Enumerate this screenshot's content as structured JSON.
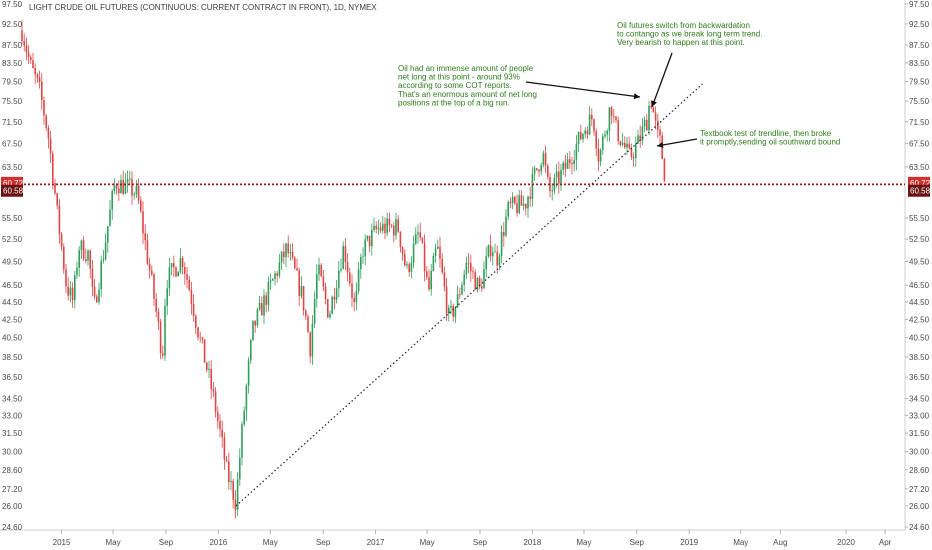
{
  "chart_data": {
    "type": "candlestick",
    "title": "LIGHT CRUDE OIL FUTURES (CONTINUOUS: CURRENT CONTRACT IN FRONT), 1D, NYMEX",
    "y_ticks": [
      "24.60",
      "26.00",
      "27.20",
      "28.60",
      "30.00",
      "31.50",
      "33.00",
      "34.50",
      "36.50",
      "38.50",
      "40.50",
      "42.50",
      "44.50",
      "46.50",
      "49.50",
      "52.50",
      "55.50",
      "60.58",
      "63.50",
      "67.50",
      "71.50",
      "75.50",
      "79.50",
      "83.50",
      "87.50",
      "92.50",
      "97.50"
    ],
    "x_ticks": [
      "2015",
      "May",
      "Sep",
      "2016",
      "May",
      "Sep",
      "2017",
      "May",
      "Sep",
      "2018",
      "May",
      "Sep",
      "2019",
      "May",
      "Aug",
      "2020",
      "Apr"
    ],
    "x_range": [
      "2014-10",
      "2020-05"
    ],
    "scale": "log",
    "series_key": [
      {
        "date": "2014-10-01",
        "close": 91.0
      },
      {
        "date": "2014-10-20",
        "close": 83.0
      },
      {
        "date": "2014-11-10",
        "close": 78.0
      },
      {
        "date": "2014-12-01",
        "close": 69.0
      },
      {
        "date": "2014-12-22",
        "close": 56.0
      },
      {
        "date": "2015-01-12",
        "close": 46.5
      },
      {
        "date": "2015-01-28",
        "close": 44.5
      },
      {
        "date": "2015-02-10",
        "close": 51.5
      },
      {
        "date": "2015-03-05",
        "close": 50.5
      },
      {
        "date": "2015-03-17",
        "close": 43.5
      },
      {
        "date": "2015-04-10",
        "close": 51.0
      },
      {
        "date": "2015-05-06",
        "close": 61.0
      },
      {
        "date": "2015-06-10",
        "close": 60.0
      },
      {
        "date": "2015-06-26",
        "close": 59.0
      },
      {
        "date": "2015-07-20",
        "close": 50.0
      },
      {
        "date": "2015-08-24",
        "close": 38.5
      },
      {
        "date": "2015-09-01",
        "close": 47.0
      },
      {
        "date": "2015-10-09",
        "close": 50.0
      },
      {
        "date": "2015-11-18",
        "close": 40.5
      },
      {
        "date": "2015-12-21",
        "close": 34.5
      },
      {
        "date": "2016-01-20",
        "close": 28.5
      },
      {
        "date": "2016-02-11",
        "close": 26.2
      },
      {
        "date": "2016-03-22",
        "close": 41.5
      },
      {
        "date": "2016-04-29",
        "close": 46.0
      },
      {
        "date": "2016-06-08",
        "close": 51.2
      },
      {
        "date": "2016-07-15",
        "close": 45.0
      },
      {
        "date": "2016-08-02",
        "close": 39.5
      },
      {
        "date": "2016-08-19",
        "close": 48.5
      },
      {
        "date": "2016-09-15",
        "close": 43.0
      },
      {
        "date": "2016-10-19",
        "close": 51.5
      },
      {
        "date": "2016-11-14",
        "close": 43.5
      },
      {
        "date": "2016-12-01",
        "close": 51.0
      },
      {
        "date": "2017-01-06",
        "close": 54.0
      },
      {
        "date": "2017-02-22",
        "close": 54.2
      },
      {
        "date": "2017-03-14",
        "close": 48.0
      },
      {
        "date": "2017-04-12",
        "close": 53.5
      },
      {
        "date": "2017-05-04",
        "close": 45.5
      },
      {
        "date": "2017-05-24",
        "close": 51.5
      },
      {
        "date": "2017-06-21",
        "close": 42.5
      },
      {
        "date": "2017-07-10",
        "close": 44.5
      },
      {
        "date": "2017-08-01",
        "close": 49.5
      },
      {
        "date": "2017-08-31",
        "close": 45.9
      },
      {
        "date": "2017-09-28",
        "close": 52.0
      },
      {
        "date": "2017-10-09",
        "close": 49.5
      },
      {
        "date": "2017-11-07",
        "close": 57.0
      },
      {
        "date": "2017-12-15",
        "close": 57.5
      },
      {
        "date": "2018-01-25",
        "close": 66.0
      },
      {
        "date": "2018-02-09",
        "close": 59.2
      },
      {
        "date": "2018-03-20",
        "close": 63.5
      },
      {
        "date": "2018-05-08",
        "close": 71.0
      },
      {
        "date": "2018-05-22",
        "close": 72.5
      },
      {
        "date": "2018-06-05",
        "close": 64.8
      },
      {
        "date": "2018-07-03",
        "close": 75.0
      },
      {
        "date": "2018-07-12",
        "close": 70.5
      },
      {
        "date": "2018-08-15",
        "close": 65.0
      },
      {
        "date": "2018-09-05",
        "close": 67.8
      },
      {
        "date": "2018-09-25",
        "close": 72.0
      },
      {
        "date": "2018-10-03",
        "close": 76.5
      },
      {
        "date": "2018-10-18",
        "close": 69.0
      },
      {
        "date": "2018-10-26",
        "close": 67.5
      },
      {
        "date": "2018-11-08",
        "close": 60.6
      }
    ],
    "price_line_upper": 60.72,
    "price_line_lower": 60.58,
    "last_price_upper_label": "60.72",
    "last_price_lower_label": "60.58",
    "trendline": {
      "from": {
        "date": "2016-02-11",
        "price": 26.0
      },
      "to": {
        "date": "2019-02-01",
        "price": 79.0
      },
      "style": "dotted"
    },
    "annotations": [
      {
        "id": "a1",
        "lines": [
          "Oil had an immense amount of people",
          "net long at this point - around 93%",
          "according to some COT reports.",
          "That's an enormous amount of net long",
          "positions at the top of a big run."
        ]
      },
      {
        "id": "a2",
        "lines": [
          "Oil futures switch from backwardation",
          "to contango as we break long term trend.",
          "Very bearish to happen at this point."
        ]
      },
      {
        "id": "a3",
        "lines": [
          "Textbook test of trendline, then broke",
          "it promptly,sending oil southward bound"
        ]
      }
    ],
    "colors": {
      "up": "#2e9e5b",
      "down": "#e04545",
      "trendline": "#222222",
      "price_line": "#d32f2f",
      "annotation_text": "#2e7d1a",
      "badge_red": "#d32f2f",
      "badge_dark": "#6b1111"
    }
  }
}
